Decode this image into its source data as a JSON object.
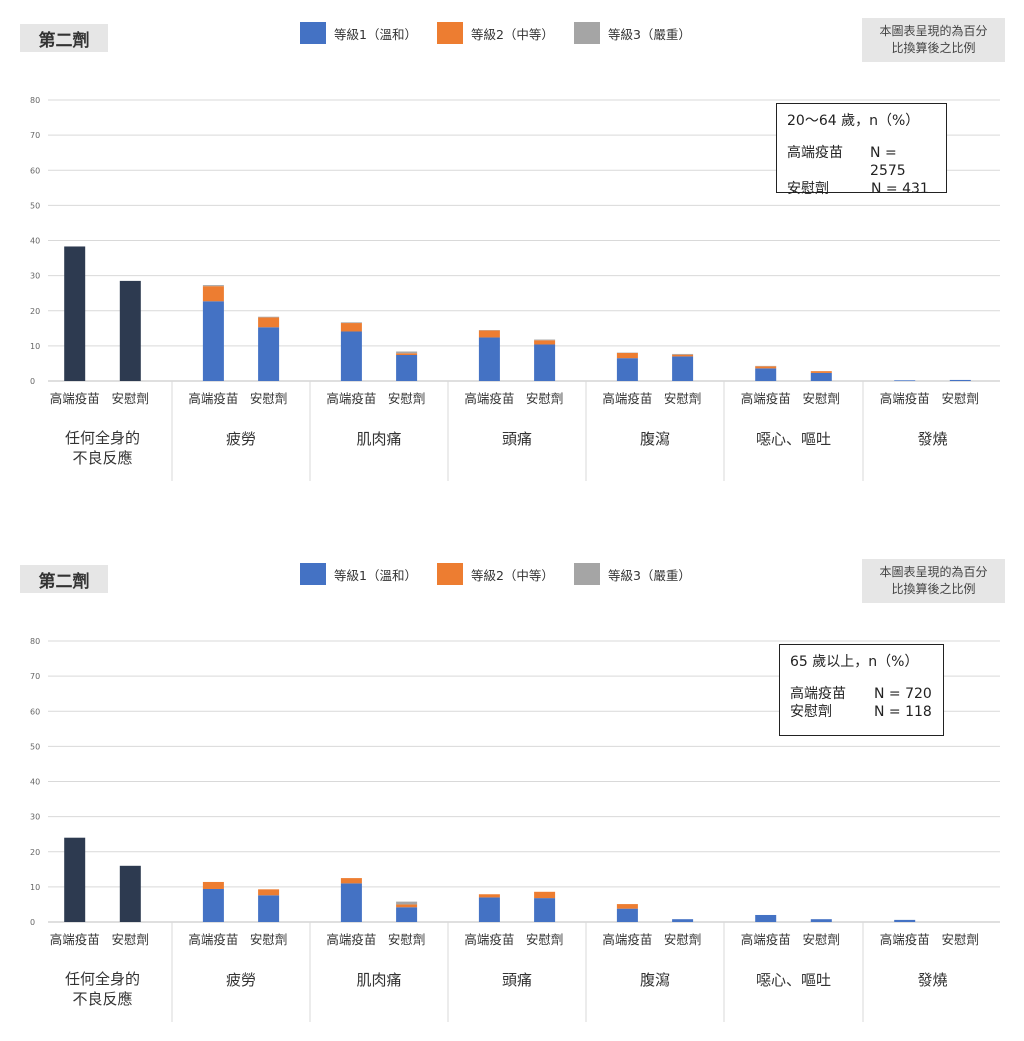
{
  "colors": {
    "grade1": "#4472c4",
    "grade2": "#ed7d31",
    "grade3": "#a5a5a5",
    "any": "#2d3a50",
    "grid": "#d9d9d9",
    "text": "#333333"
  },
  "legend": [
    {
      "label": "等級1（溫和）",
      "color": "#4472c4"
    },
    {
      "label": "等級2（中等）",
      "color": "#ed7d31"
    },
    {
      "label": "等級3（嚴重）",
      "color": "#a5a5a5"
    }
  ],
  "note_lines": [
    "本圖表呈現的為百分",
    "比換算後之比例"
  ],
  "panels": [
    {
      "dose": "第二劑",
      "info": {
        "title": "20～64 歲，n（%）",
        "rows": [
          {
            "label": "高端疫苗",
            "value": "N = 2575"
          },
          {
            "label": "安慰劑",
            "value": "N = 431"
          }
        ]
      }
    },
    {
      "dose": "第二劑",
      "info": {
        "title": "65 歲以上，n（%）",
        "rows": [
          {
            "label": "高端疫苗",
            "value": "N = 720"
          },
          {
            "label": "安慰劑",
            "value": "N = 118"
          }
        ]
      }
    }
  ],
  "chart_data": [
    {
      "type": "bar",
      "stacked": true,
      "ylim": [
        0,
        80
      ],
      "yticks": [
        0,
        10,
        20,
        30,
        40,
        50,
        60,
        70,
        80
      ],
      "grid": true,
      "groups": [
        "任何全身的\n不良反應",
        "疲勞",
        "肌肉痛",
        "頭痛",
        "腹瀉",
        "噁心、嘔吐",
        "發燒"
      ],
      "bar_labels": [
        "高端疫苗",
        "安慰劑"
      ],
      "bars": [
        {
          "group": 0,
          "label": "高端疫苗",
          "total": 38.3
        },
        {
          "group": 0,
          "label": "安慰劑",
          "total": 28.5
        },
        {
          "group": 1,
          "label": "高端疫苗",
          "g1": 22.7,
          "g2": 4.3,
          "g3": 0.3
        },
        {
          "group": 1,
          "label": "安慰劑",
          "g1": 15.3,
          "g2": 2.8,
          "g3": 0.2
        },
        {
          "group": 2,
          "label": "高端疫苗",
          "g1": 14.1,
          "g2": 2.4,
          "g3": 0.2
        },
        {
          "group": 2,
          "label": "安慰劑",
          "g1": 7.4,
          "g2": 0.5,
          "g3": 0.5
        },
        {
          "group": 3,
          "label": "高端疫苗",
          "g1": 12.4,
          "g2": 2.0,
          "g3": 0.1
        },
        {
          "group": 3,
          "label": "安慰劑",
          "g1": 10.4,
          "g2": 1.2,
          "g3": 0.2
        },
        {
          "group": 4,
          "label": "高端疫苗",
          "g1": 6.5,
          "g2": 1.5,
          "g3": 0.1
        },
        {
          "group": 4,
          "label": "安慰劑",
          "g1": 7.0,
          "g2": 0.5,
          "g3": 0.2
        },
        {
          "group": 5,
          "label": "高端疫苗",
          "g1": 3.6,
          "g2": 0.6,
          "g3": 0.1
        },
        {
          "group": 5,
          "label": "安慰劑",
          "g1": 2.3,
          "g2": 0.5,
          "g3": 0.0
        },
        {
          "group": 6,
          "label": "高端疫苗",
          "g1": 0.2,
          "g2": 0.0,
          "g3": 0.0
        },
        {
          "group": 6,
          "label": "安慰劑",
          "g1": 0.3,
          "g2": 0.0,
          "g3": 0.0
        }
      ]
    },
    {
      "type": "bar",
      "stacked": true,
      "ylim": [
        0,
        80
      ],
      "yticks": [
        0,
        10,
        20,
        30,
        40,
        50,
        60,
        70,
        80
      ],
      "grid": true,
      "groups": [
        "任何全身的\n不良反應",
        "疲勞",
        "肌肉痛",
        "頭痛",
        "腹瀉",
        "噁心、嘔吐",
        "發燒"
      ],
      "bar_labels": [
        "高端疫苗",
        "安慰劑"
      ],
      "bars": [
        {
          "group": 0,
          "label": "高端疫苗",
          "total": 24.0
        },
        {
          "group": 0,
          "label": "安慰劑",
          "total": 16.0
        },
        {
          "group": 1,
          "label": "高端疫苗",
          "g1": 9.4,
          "g2": 2.0,
          "g3": 0.0
        },
        {
          "group": 1,
          "label": "安慰劑",
          "g1": 7.6,
          "g2": 1.7,
          "g3": 0.0
        },
        {
          "group": 2,
          "label": "高端疫苗",
          "g1": 11.0,
          "g2": 1.5,
          "g3": 0.0
        },
        {
          "group": 2,
          "label": "安慰劑",
          "g1": 4.2,
          "g2": 0.8,
          "g3": 0.8
        },
        {
          "group": 3,
          "label": "高端疫苗",
          "g1": 7.0,
          "g2": 0.9,
          "g3": 0.0
        },
        {
          "group": 3,
          "label": "安慰劑",
          "g1": 6.8,
          "g2": 1.8,
          "g3": 0.0
        },
        {
          "group": 4,
          "label": "高端疫苗",
          "g1": 3.8,
          "g2": 1.3,
          "g3": 0.0
        },
        {
          "group": 4,
          "label": "安慰劑",
          "g1": 0.8,
          "g2": 0.0,
          "g3": 0.0
        },
        {
          "group": 5,
          "label": "高端疫苗",
          "g1": 2.0,
          "g2": 0.0,
          "g3": 0.0
        },
        {
          "group": 5,
          "label": "安慰劑",
          "g1": 0.8,
          "g2": 0.0,
          "g3": 0.0
        },
        {
          "group": 6,
          "label": "高端疫苗",
          "g1": 0.6,
          "g2": 0.0,
          "g3": 0.0
        },
        {
          "group": 6,
          "label": "安慰劑",
          "g1": 0.0,
          "g2": 0.0,
          "g3": 0.0
        }
      ]
    }
  ]
}
